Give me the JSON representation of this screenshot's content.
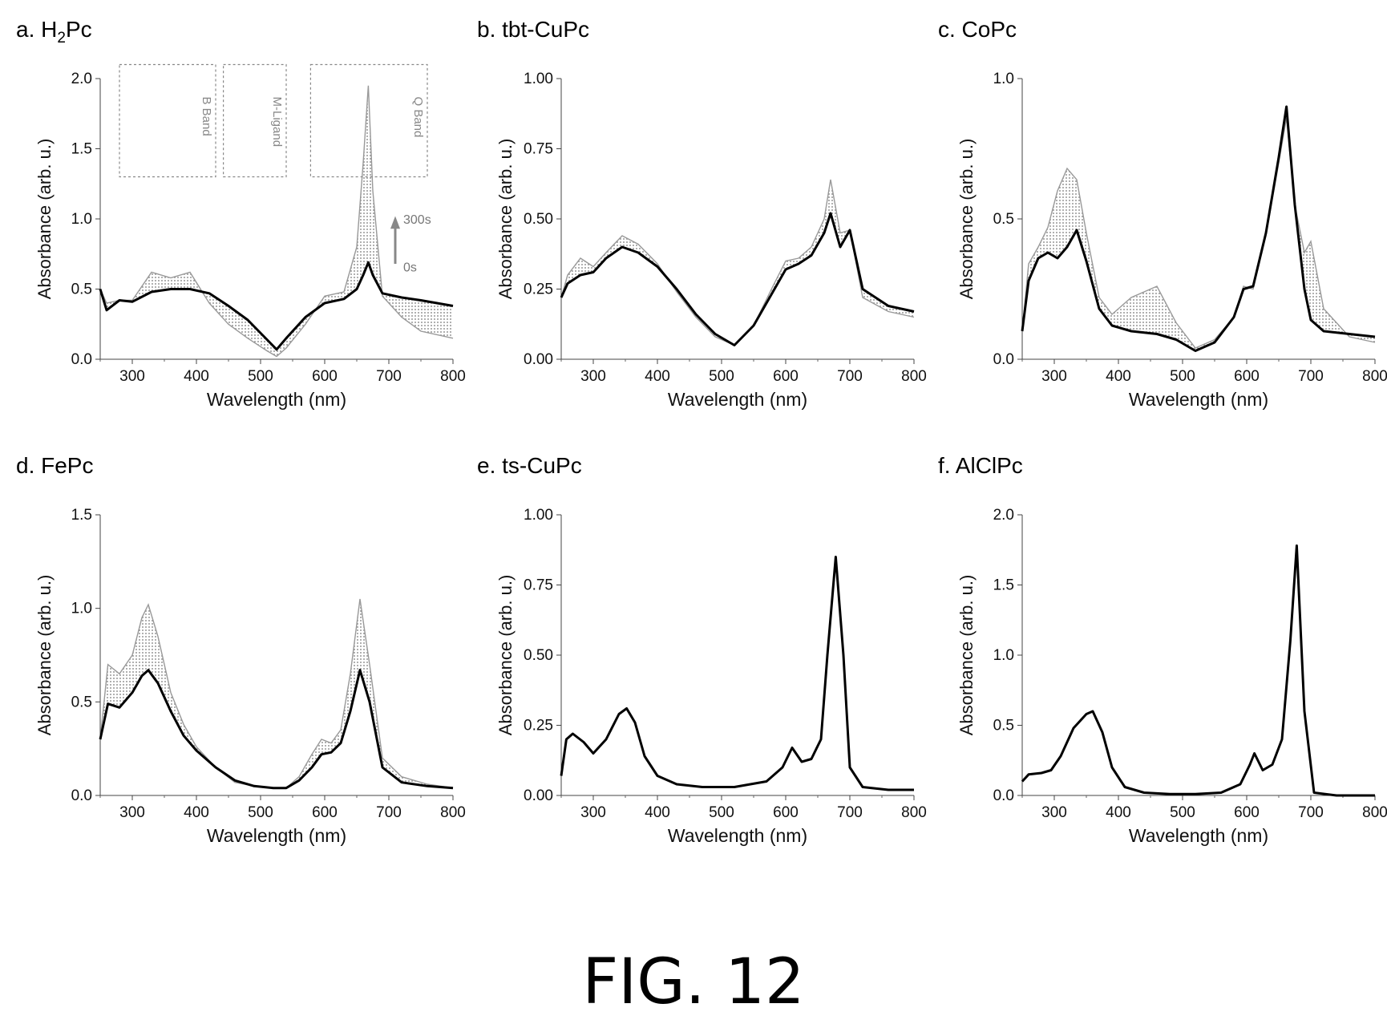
{
  "figure": {
    "caption": "FIG. 12"
  },
  "chart_data": [
    {
      "type": "line",
      "panel": "a",
      "title": "a. H2Pc",
      "title_prefix": "a. H",
      "title_sub": "2",
      "title_suffix": "Pc",
      "xlabel": "Wavelength (nm)",
      "ylabel": "Absorbance (arb. u.)",
      "xlim": [
        250,
        800
      ],
      "ylim": [
        0,
        2.0
      ],
      "xticks": [
        "300",
        "400",
        "500",
        "600",
        "700",
        "800"
      ],
      "yticks": [
        "0.0",
        "0.5",
        "1.0",
        "1.5",
        "2.0"
      ],
      "x": [
        250,
        260,
        280,
        300,
        330,
        360,
        390,
        420,
        450,
        480,
        510,
        525,
        540,
        570,
        600,
        630,
        650,
        660,
        668,
        675,
        690,
        720,
        750,
        800
      ],
      "series": [
        {
          "values": [
            0.5,
            0.35,
            0.42,
            0.41,
            0.48,
            0.5,
            0.5,
            0.47,
            0.38,
            0.28,
            0.14,
            0.07,
            0.15,
            0.3,
            0.4,
            0.43,
            0.5,
            0.6,
            0.69,
            0.6,
            0.47,
            0.44,
            0.42,
            0.38
          ]
        },
        {
          "values": [
            0.5,
            0.4,
            0.42,
            0.42,
            0.62,
            0.58,
            0.62,
            0.4,
            0.25,
            0.15,
            0.06,
            0.02,
            0.08,
            0.25,
            0.45,
            0.48,
            0.8,
            1.4,
            1.95,
            1.2,
            0.45,
            0.3,
            0.2,
            0.15
          ]
        }
      ],
      "annotations": [
        "B Band",
        "M-Ligand",
        "Q Band",
        "300s",
        "0s"
      ]
    },
    {
      "type": "line",
      "panel": "b",
      "title": "b. tbt-CuPc",
      "xlabel": "Wavelength (nm)",
      "ylabel": "Absorbance (arb. u.)",
      "xlim": [
        250,
        800
      ],
      "ylim": [
        0,
        1.0
      ],
      "xticks": [
        "300",
        "400",
        "500",
        "600",
        "700",
        "800"
      ],
      "yticks": [
        "0.00",
        "0.25",
        "0.50",
        "0.75",
        "1.00"
      ],
      "x": [
        250,
        260,
        280,
        300,
        320,
        345,
        370,
        400,
        430,
        460,
        490,
        520,
        550,
        580,
        600,
        620,
        640,
        660,
        670,
        685,
        700,
        720,
        760,
        800
      ],
      "series": [
        {
          "values": [
            0.22,
            0.27,
            0.3,
            0.31,
            0.36,
            0.4,
            0.38,
            0.33,
            0.25,
            0.16,
            0.09,
            0.05,
            0.12,
            0.24,
            0.32,
            0.34,
            0.37,
            0.45,
            0.52,
            0.4,
            0.46,
            0.25,
            0.19,
            0.17
          ]
        },
        {
          "values": [
            0.22,
            0.3,
            0.36,
            0.33,
            0.38,
            0.44,
            0.41,
            0.34,
            0.24,
            0.15,
            0.08,
            0.05,
            0.12,
            0.26,
            0.35,
            0.36,
            0.4,
            0.5,
            0.64,
            0.45,
            0.46,
            0.22,
            0.17,
            0.15
          ]
        }
      ]
    },
    {
      "type": "line",
      "panel": "c",
      "title": "c. CoPc",
      "xlabel": "Wavelength (nm)",
      "ylabel": "Absorbance (arb. u.)",
      "xlim": [
        250,
        800
      ],
      "ylim": [
        0,
        1.0
      ],
      "xticks": [
        "300",
        "400",
        "500",
        "600",
        "700",
        "800"
      ],
      "yticks": [
        "0.0",
        "0.5",
        "1.0"
      ],
      "x": [
        250,
        260,
        275,
        290,
        305,
        320,
        335,
        350,
        370,
        390,
        420,
        460,
        490,
        520,
        550,
        580,
        595,
        610,
        630,
        650,
        662,
        675,
        690,
        700,
        720,
        760,
        800
      ],
      "series": [
        {
          "values": [
            0.1,
            0.28,
            0.36,
            0.38,
            0.36,
            0.4,
            0.46,
            0.35,
            0.18,
            0.12,
            0.1,
            0.09,
            0.07,
            0.03,
            0.06,
            0.15,
            0.25,
            0.26,
            0.45,
            0.72,
            0.9,
            0.55,
            0.25,
            0.14,
            0.1,
            0.09,
            0.08
          ]
        },
        {
          "values": [
            0.1,
            0.34,
            0.4,
            0.47,
            0.6,
            0.68,
            0.64,
            0.45,
            0.22,
            0.16,
            0.22,
            0.26,
            0.13,
            0.04,
            0.07,
            0.15,
            0.26,
            0.25,
            0.44,
            0.7,
            0.86,
            0.55,
            0.38,
            0.42,
            0.18,
            0.08,
            0.06
          ]
        }
      ]
    },
    {
      "type": "line",
      "panel": "d",
      "title": "d. FePc",
      "xlabel": "Wavelength (nm)",
      "ylabel": "Absorbance (arb. u.)",
      "xlim": [
        250,
        800
      ],
      "ylim": [
        0,
        1.5
      ],
      "xticks": [
        "300",
        "400",
        "500",
        "600",
        "700",
        "800"
      ],
      "yticks": [
        "0.0",
        "0.5",
        "1.0",
        "1.5"
      ],
      "x": [
        250,
        262,
        280,
        300,
        315,
        325,
        340,
        360,
        380,
        400,
        430,
        460,
        490,
        520,
        540,
        560,
        580,
        595,
        610,
        625,
        640,
        655,
        670,
        690,
        720,
        760,
        800
      ],
      "series": [
        {
          "values": [
            0.3,
            0.49,
            0.47,
            0.55,
            0.64,
            0.67,
            0.6,
            0.45,
            0.32,
            0.24,
            0.15,
            0.08,
            0.05,
            0.04,
            0.04,
            0.08,
            0.15,
            0.22,
            0.23,
            0.28,
            0.45,
            0.67,
            0.5,
            0.15,
            0.07,
            0.05,
            0.04
          ]
        },
        {
          "values": [
            0.3,
            0.7,
            0.65,
            0.75,
            0.95,
            1.02,
            0.85,
            0.55,
            0.38,
            0.26,
            0.15,
            0.07,
            0.05,
            0.04,
            0.04,
            0.1,
            0.22,
            0.3,
            0.28,
            0.35,
            0.65,
            1.05,
            0.7,
            0.2,
            0.1,
            0.06,
            0.04
          ]
        }
      ]
    },
    {
      "type": "line",
      "panel": "e",
      "title": "e. ts-CuPc",
      "xlabel": "Wavelength (nm)",
      "ylabel": "Absorbance (arb. u.)",
      "xlim": [
        250,
        800
      ],
      "ylim": [
        0,
        1.0
      ],
      "xticks": [
        "300",
        "400",
        "500",
        "600",
        "700",
        "800"
      ],
      "yticks": [
        "0.00",
        "0.25",
        "0.50",
        "0.75",
        "1.00"
      ],
      "x": [
        250,
        258,
        268,
        285,
        300,
        320,
        340,
        352,
        365,
        380,
        400,
        430,
        470,
        520,
        570,
        595,
        610,
        625,
        640,
        655,
        665,
        678,
        690,
        700,
        720,
        760,
        800
      ],
      "series": [
        {
          "values": [
            0.07,
            0.2,
            0.22,
            0.19,
            0.15,
            0.2,
            0.29,
            0.31,
            0.26,
            0.14,
            0.07,
            0.04,
            0.03,
            0.03,
            0.05,
            0.1,
            0.17,
            0.12,
            0.13,
            0.2,
            0.5,
            0.85,
            0.5,
            0.1,
            0.03,
            0.02,
            0.02
          ]
        }
      ]
    },
    {
      "type": "line",
      "panel": "f",
      "title": "f. AlClPc",
      "xlabel": "Wavelength (nm)",
      "ylabel": "Absorbance (arb. u.)",
      "xlim": [
        250,
        800
      ],
      "ylim": [
        0,
        2.0
      ],
      "xticks": [
        "300",
        "400",
        "500",
        "600",
        "700",
        "800"
      ],
      "yticks": [
        "0.0",
        "0.5",
        "1.0",
        "1.5",
        "2.0"
      ],
      "x": [
        250,
        260,
        280,
        295,
        310,
        330,
        350,
        360,
        375,
        390,
        410,
        440,
        480,
        520,
        560,
        590,
        605,
        612,
        625,
        640,
        655,
        668,
        678,
        690,
        705,
        740,
        800
      ],
      "series": [
        {
          "values": [
            0.1,
            0.15,
            0.16,
            0.18,
            0.28,
            0.48,
            0.58,
            0.6,
            0.45,
            0.2,
            0.06,
            0.02,
            0.01,
            0.01,
            0.02,
            0.08,
            0.22,
            0.3,
            0.18,
            0.22,
            0.4,
            1.1,
            1.78,
            0.6,
            0.02,
            0.0,
            0.0
          ]
        }
      ]
    }
  ]
}
